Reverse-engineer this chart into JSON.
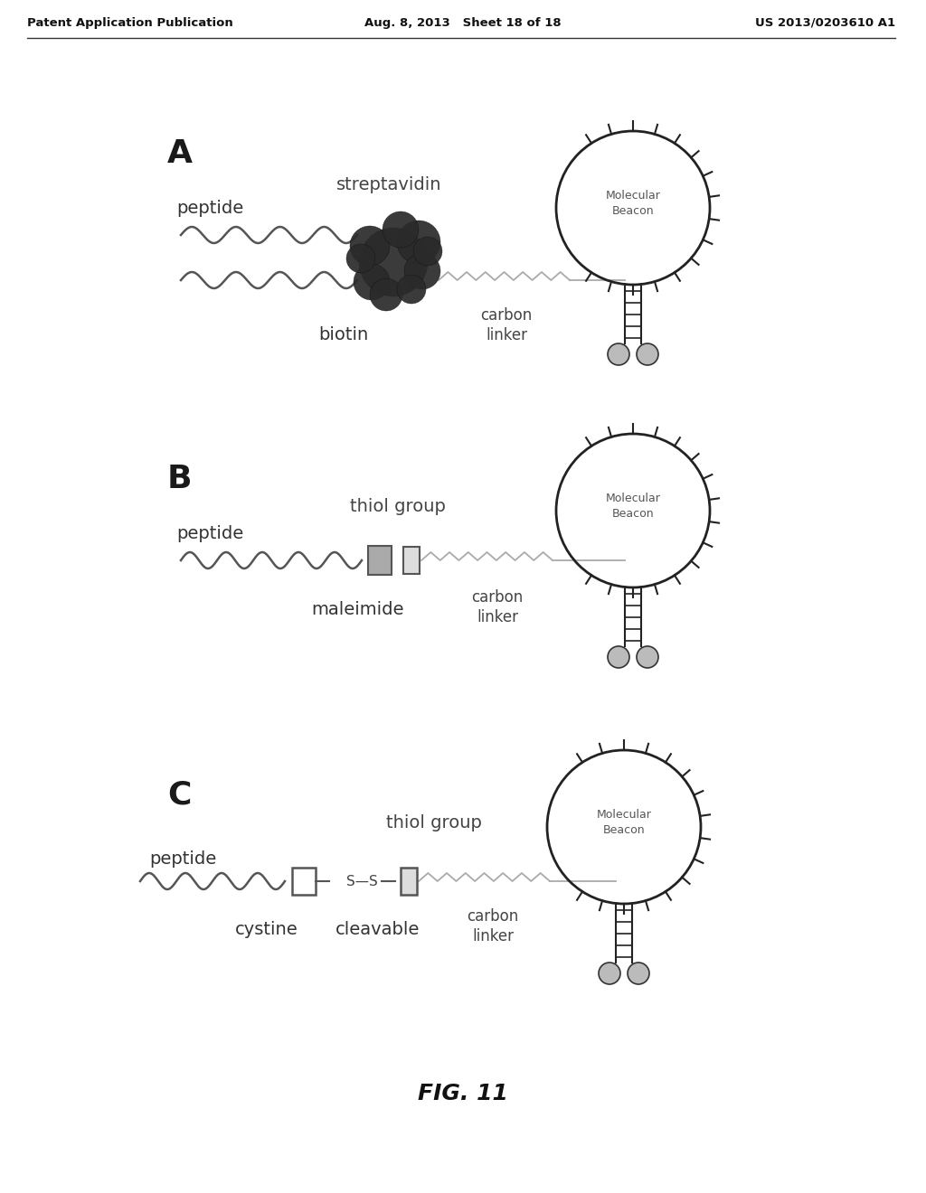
{
  "header_left": "Patent Application Publication",
  "header_mid": "Aug. 8, 2013   Sheet 18 of 18",
  "header_right": "US 2013/0203610 A1",
  "footer": "FIG. 11",
  "panel_A_label": "A",
  "panel_B_label": "B",
  "panel_C_label": "C",
  "label_peptide": "peptide",
  "label_streptavidin": "streptavidin",
  "label_biotin": "biotin",
  "label_carbon_linker": "carbon\nlinker",
  "label_molecular_beacon": "Molecular\nBeacon",
  "label_thiol_group_B": "thiol group",
  "label_maleimide": "maleimide",
  "label_thiol_group_C": "thiol group",
  "label_cystine": "cystine",
  "label_cleavable": "cleavable",
  "bg_color": "#ffffff",
  "line_color": "#333333",
  "dark_blob_color": "#444444",
  "gray_color": "#888888",
  "light_gray": "#aaaaaa"
}
